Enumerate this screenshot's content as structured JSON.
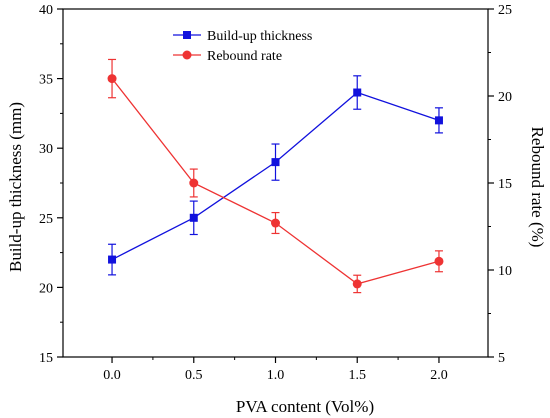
{
  "chart_data": {
    "type": "line",
    "x": [
      0.0,
      0.5,
      1.0,
      1.5,
      2.0
    ],
    "x_tick_labels": [
      "0.0",
      "0.5",
      "1.0",
      "1.5",
      "2.0"
    ],
    "xlabel": "PVA content (Vol%)",
    "xlim": [
      -0.3,
      2.3
    ],
    "y_left": {
      "label": "Build-up thickness (mm)",
      "lim": [
        15,
        40
      ],
      "ticks": [
        15,
        20,
        25,
        30,
        35,
        40
      ],
      "tick_labels": [
        "15",
        "20",
        "25",
        "30",
        "35",
        "40"
      ]
    },
    "y_right": {
      "label": "Rebound rate (%)",
      "lim": [
        5,
        25
      ],
      "ticks": [
        5,
        10,
        15,
        20,
        25
      ],
      "tick_labels": [
        "5",
        "10",
        "15",
        "20",
        "25"
      ]
    },
    "series": [
      {
        "name": "Build-up thickness",
        "axis": "left",
        "marker": "square",
        "color": "#1111dd",
        "values": [
          22.0,
          25.0,
          29.0,
          34.0,
          32.0
        ],
        "errors": [
          1.1,
          1.2,
          1.3,
          1.2,
          0.9
        ]
      },
      {
        "name": "Rebound rate",
        "axis": "right",
        "marker": "circle",
        "color": "#ee3333",
        "values": [
          21.0,
          15.0,
          12.7,
          9.2,
          10.5
        ],
        "errors": [
          1.1,
          0.8,
          0.6,
          0.5,
          0.6
        ]
      }
    ],
    "legend_position": "top-center",
    "grid": false
  }
}
